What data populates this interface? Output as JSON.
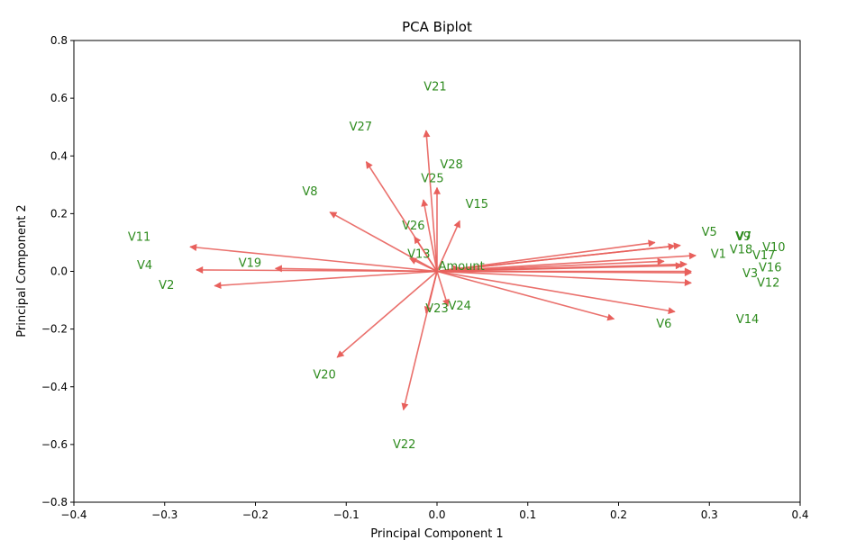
{
  "chart_data": {
    "type": "scatter",
    "subtype": "biplot",
    "title": "PCA Biplot",
    "xlabel": "Principal Component 1",
    "ylabel": "Principal Component 2",
    "xlim": [
      -0.4,
      0.4
    ],
    "ylim": [
      -0.8,
      0.8
    ],
    "xticks": [
      "−0.4",
      "−0.3",
      "−0.2",
      "−0.1",
      "0.0",
      "0.1",
      "0.2",
      "0.3",
      "0.4"
    ],
    "xtick_values": [
      -0.4,
      -0.3,
      -0.2,
      -0.1,
      0.0,
      0.1,
      0.2,
      0.3,
      0.4
    ],
    "yticks": [
      "−0.8",
      "−0.6",
      "−0.4",
      "−0.2",
      "0.0",
      "0.2",
      "0.4",
      "0.6",
      "0.8"
    ],
    "ytick_values": [
      -0.8,
      -0.6,
      -0.4,
      -0.2,
      0.0,
      0.2,
      0.4,
      0.6,
      0.8
    ],
    "grid": false,
    "arrow_color": "#e8605c",
    "label_color": "#2e8b1e",
    "vectors": [
      {
        "name": "V1",
        "x": 0.285,
        "y": 0.055,
        "lx": 0.31,
        "ly": 0.06
      },
      {
        "name": "V2",
        "x": -0.245,
        "y": -0.05,
        "lx": -0.298,
        "ly": -0.048
      },
      {
        "name": "V3",
        "x": 0.28,
        "y": -0.005,
        "lx": 0.345,
        "ly": -0.008
      },
      {
        "name": "V4",
        "x": -0.265,
        "y": 0.005,
        "lx": -0.322,
        "ly": 0.02
      },
      {
        "name": "V5",
        "x": 0.262,
        "y": 0.088,
        "lx": 0.3,
        "ly": 0.135
      },
      {
        "name": "V6",
        "x": 0.262,
        "y": -0.14,
        "lx": 0.25,
        "ly": -0.182
      },
      {
        "name": "V7",
        "x": 0.27,
        "y": 0.02,
        "lx": 0.338,
        "ly": 0.12
      },
      {
        "name": "V8",
        "x": -0.118,
        "y": 0.205,
        "lx": -0.14,
        "ly": 0.276
      },
      {
        "name": "V9",
        "x": 0.268,
        "y": 0.09,
        "lx": 0.337,
        "ly": 0.12
      },
      {
        "name": "V10",
        "x": 0.25,
        "y": 0.035,
        "lx": 0.371,
        "ly": 0.082
      },
      {
        "name": "V11",
        "x": -0.272,
        "y": 0.085,
        "lx": -0.328,
        "ly": 0.118
      },
      {
        "name": "V12",
        "x": 0.28,
        "y": -0.04,
        "lx": 0.365,
        "ly": -0.04
      },
      {
        "name": "V13",
        "x": -0.03,
        "y": 0.045,
        "lx": -0.02,
        "ly": 0.06
      },
      {
        "name": "V14",
        "x": 0.195,
        "y": -0.165,
        "lx": 0.342,
        "ly": -0.167
      },
      {
        "name": "V15",
        "x": 0.025,
        "y": 0.175,
        "lx": 0.044,
        "ly": 0.232
      },
      {
        "name": "V16",
        "x": 0.28,
        "y": 0.0,
        "lx": 0.367,
        "ly": 0.013
      },
      {
        "name": "V17",
        "x": 0.275,
        "y": 0.025,
        "lx": 0.36,
        "ly": 0.055
      },
      {
        "name": "V18",
        "x": 0.24,
        "y": 0.1,
        "lx": 0.335,
        "ly": 0.075
      },
      {
        "name": "V19",
        "x": -0.178,
        "y": 0.01,
        "lx": -0.206,
        "ly": 0.028
      },
      {
        "name": "V20",
        "x": -0.11,
        "y": -0.298,
        "lx": -0.124,
        "ly": -0.358
      },
      {
        "name": "V21",
        "x": -0.012,
        "y": 0.488,
        "lx": -0.002,
        "ly": 0.64
      },
      {
        "name": "V22",
        "x": -0.037,
        "y": -0.48,
        "lx": -0.036,
        "ly": -0.6
      },
      {
        "name": "V23",
        "x": -0.012,
        "y": -0.145,
        "lx": 0.0,
        "ly": -0.13
      },
      {
        "name": "V24",
        "x": 0.012,
        "y": -0.12,
        "lx": 0.025,
        "ly": -0.12
      },
      {
        "name": "V25",
        "x": -0.015,
        "y": 0.248,
        "lx": -0.005,
        "ly": 0.322
      },
      {
        "name": "V26",
        "x": -0.025,
        "y": 0.12,
        "lx": -0.026,
        "ly": 0.158
      },
      {
        "name": "V27",
        "x": -0.078,
        "y": 0.38,
        "lx": -0.084,
        "ly": 0.5
      },
      {
        "name": "V28",
        "x": 0.0,
        "y": 0.29,
        "lx": 0.016,
        "ly": 0.37
      },
      {
        "name": "Amount",
        "x": 0.025,
        "y": 0.012,
        "lx": 0.027,
        "ly": 0.017
      }
    ]
  }
}
